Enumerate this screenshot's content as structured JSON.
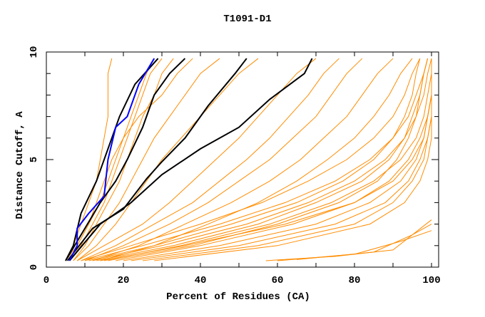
{
  "chart_data": {
    "type": "line",
    "title": "T1091-D1",
    "xlabel": "Percent of Residues (CA)",
    "ylabel": "Distance Cutoff, A",
    "xlim": [
      0,
      100
    ],
    "ylim": [
      0,
      10
    ],
    "x_ticks": [
      0,
      20,
      40,
      60,
      80,
      100
    ],
    "y_ticks": [
      0,
      5,
      10
    ],
    "grid": false,
    "legend": "none",
    "colors": {
      "models": "#ff8c00",
      "highlight_black": "#000000",
      "highlight_blue": "#0000ff"
    },
    "cutoffs": [
      0.3,
      1,
      2,
      3,
      4,
      5,
      6,
      7,
      8,
      9,
      9.7
    ],
    "orange_series": [
      [
        5,
        8,
        11,
        14,
        16,
        18,
        20,
        22,
        24,
        26,
        28
      ],
      [
        6,
        9,
        12,
        15,
        17,
        19,
        21,
        23,
        25,
        27,
        30
      ],
      [
        7,
        10,
        13,
        16,
        19,
        21,
        23,
        25,
        28,
        30,
        33
      ],
      [
        5,
        7,
        9,
        11,
        13,
        14,
        15,
        16,
        16,
        16,
        17
      ],
      [
        6,
        8,
        11,
        13,
        15,
        17,
        20,
        24,
        30,
        34,
        38
      ],
      [
        7,
        11,
        15,
        19,
        22,
        25,
        28,
        32,
        36,
        40,
        45
      ],
      [
        8,
        13,
        18,
        22,
        26,
        30,
        35,
        40,
        45,
        50,
        55
      ],
      [
        8,
        15,
        25,
        32,
        38,
        44,
        50,
        55,
        60,
        65,
        70
      ],
      [
        9,
        18,
        28,
        38,
        45,
        52,
        58,
        63,
        68,
        72,
        76
      ],
      [
        10,
        20,
        32,
        42,
        50,
        58,
        64,
        70,
        74,
        78,
        82
      ],
      [
        12,
        24,
        36,
        48,
        58,
        66,
        72,
        78,
        82,
        86,
        90
      ],
      [
        14,
        28,
        42,
        55,
        65,
        73,
        80,
        85,
        89,
        92,
        95
      ],
      [
        10,
        25,
        45,
        62,
        75,
        84,
        90,
        94,
        96,
        98,
        99
      ],
      [
        12,
        30,
        52,
        68,
        80,
        88,
        93,
        96,
        98,
        99,
        100
      ],
      [
        15,
        35,
        58,
        74,
        85,
        92,
        96,
        98,
        99,
        100,
        100
      ],
      [
        18,
        40,
        64,
        80,
        89,
        94,
        97,
        99,
        100,
        100,
        100
      ],
      [
        20,
        45,
        70,
        84,
        92,
        96,
        98,
        99,
        100,
        100,
        100
      ],
      [
        22,
        50,
        75,
        88,
        94,
        97,
        99,
        100,
        100,
        100,
        100
      ],
      [
        25,
        55,
        80,
        90,
        95,
        98,
        99,
        100,
        100,
        100,
        100
      ],
      [
        28,
        60,
        84,
        93,
        97,
        99,
        100,
        100,
        100,
        100,
        100
      ],
      [
        11,
        28,
        48,
        65,
        77,
        85,
        90,
        93,
        95,
        96,
        97
      ],
      [
        13,
        33,
        55,
        70,
        82,
        89,
        93,
        95,
        97,
        98,
        99
      ],
      [
        16,
        38,
        60,
        76,
        86,
        91,
        94,
        96,
        97,
        98,
        99
      ],
      [
        9,
        22,
        40,
        56,
        68,
        78,
        85,
        90,
        93,
        95,
        97
      ],
      [
        14,
        36,
        62,
        80,
        90,
        95,
        98,
        99,
        100,
        100,
        100
      ]
    ],
    "orange_low_series": [
      [
        [
          57,
          0.3
        ],
        [
          75,
          0.5
        ],
        [
          90,
          0.8
        ],
        [
          100,
          2.2
        ]
      ],
      [
        [
          60,
          0.3
        ],
        [
          80,
          0.6
        ],
        [
          92,
          1.2
        ],
        [
          100,
          1.7
        ]
      ],
      [
        [
          65,
          0.35
        ],
        [
          85,
          0.7
        ],
        [
          95,
          1.5
        ],
        [
          100,
          2.0
        ]
      ]
    ],
    "black_series": [
      [
        [
          5,
          0.3
        ],
        [
          7,
          1
        ],
        [
          9,
          2.5
        ],
        [
          13,
          4
        ],
        [
          16,
          5.5
        ],
        [
          19,
          7
        ],
        [
          23,
          8.5
        ],
        [
          29,
          9.7
        ]
      ],
      [
        [
          5,
          0.3
        ],
        [
          9,
          1.5
        ],
        [
          14,
          3
        ],
        [
          18,
          4
        ],
        [
          21,
          5
        ],
        [
          25,
          6.5
        ],
        [
          28,
          8
        ],
        [
          32,
          9
        ],
        [
          36,
          9.7
        ]
      ],
      [
        [
          5.5,
          0.3
        ],
        [
          12,
          1.8
        ],
        [
          20,
          2.7
        ],
        [
          26,
          4.1
        ],
        [
          30,
          4.9
        ],
        [
          36,
          6
        ],
        [
          42,
          7.5
        ],
        [
          49,
          9
        ],
        [
          52,
          9.7
        ]
      ],
      [
        [
          6,
          0.3
        ],
        [
          14,
          2
        ],
        [
          22,
          3
        ],
        [
          30,
          4.3
        ],
        [
          40,
          5.5
        ],
        [
          50,
          6.5
        ],
        [
          58,
          7.8
        ],
        [
          67,
          9
        ],
        [
          69,
          9.7
        ]
      ]
    ],
    "blue_series": [
      [
        6,
        0.3
      ],
      [
        8,
        1
      ],
      [
        8,
        1.8
      ],
      [
        11,
        2.5
      ],
      [
        15,
        3.3
      ],
      [
        16,
        5
      ],
      [
        18,
        6.5
      ],
      [
        21,
        7
      ],
      [
        24,
        8.5
      ],
      [
        28,
        9.7
      ]
    ]
  }
}
